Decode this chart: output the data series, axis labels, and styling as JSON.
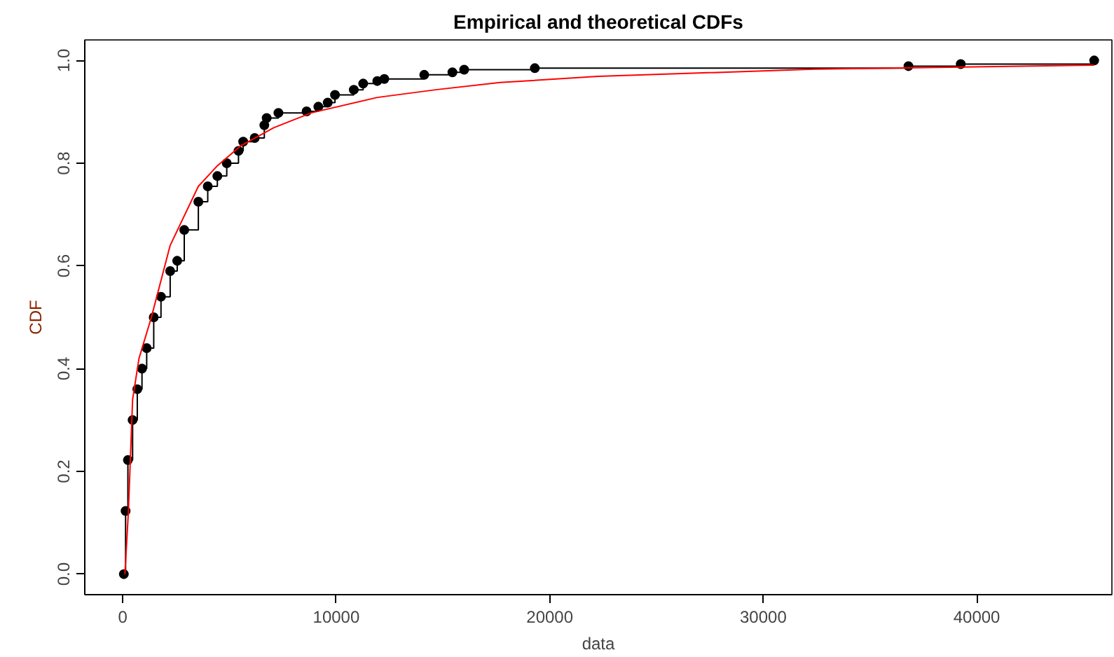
{
  "chart_data": {
    "type": "line",
    "title": "Empirical and theoretical CDFs",
    "xlabel": "data",
    "ylabel": "CDF",
    "xlim": [
      -1780,
      46330
    ],
    "ylim": [
      -0.04,
      1.04
    ],
    "xticks": [
      0,
      10000,
      20000,
      30000,
      40000
    ],
    "yticks": [
      {
        "value": 0,
        "label": "0.0"
      },
      {
        "value": 0.2,
        "label": "0.2"
      },
      {
        "value": 0.4,
        "label": "0.4"
      },
      {
        "value": 0.6,
        "label": "0.6"
      },
      {
        "value": 0.8,
        "label": "0.8"
      },
      {
        "value": 1,
        "label": "1.0"
      }
    ],
    "grid": false,
    "series": [
      {
        "type": "step",
        "marker": "circle",
        "color": "#000000",
        "x": [
          50,
          132,
          240,
          460,
          680,
          900,
          1120,
          1450,
          1790,
          2220,
          2550,
          2880,
          3540,
          3980,
          4430,
          4870,
          5420,
          5640,
          6180,
          6630,
          6740,
          7290,
          8610,
          9160,
          9600,
          9940,
          10820,
          11260,
          11920,
          12250,
          14120,
          15440,
          15990,
          19300,
          36800,
          39250,
          45500
        ],
        "values": [
          0,
          0.123,
          0.222,
          0.3,
          0.36,
          0.4,
          0.44,
          0.5,
          0.54,
          0.59,
          0.61,
          0.67,
          0.725,
          0.755,
          0.775,
          0.8,
          0.824,
          0.842,
          0.849,
          0.874,
          0.888,
          0.898,
          0.901,
          0.91,
          0.918,
          0.933,
          0.943,
          0.955,
          0.96,
          0.964,
          0.972,
          0.977,
          0.982,
          0.985,
          0.989,
          0.993,
          1.0
        ]
      },
      {
        "marker": "none",
        "color": "#ff0000",
        "x": [
          100,
          265,
          460,
          760,
          1340,
          2220,
          3540,
          4430,
          5530,
          7070,
          8830,
          11920,
          14660,
          17670,
          22250,
          32360,
          45500
        ],
        "values": [
          0,
          0.123,
          0.34,
          0.42,
          0.5,
          0.64,
          0.755,
          0.795,
          0.834,
          0.869,
          0.898,
          0.928,
          0.943,
          0.957,
          0.969,
          0.983,
          0.991
        ]
      }
    ]
  }
}
